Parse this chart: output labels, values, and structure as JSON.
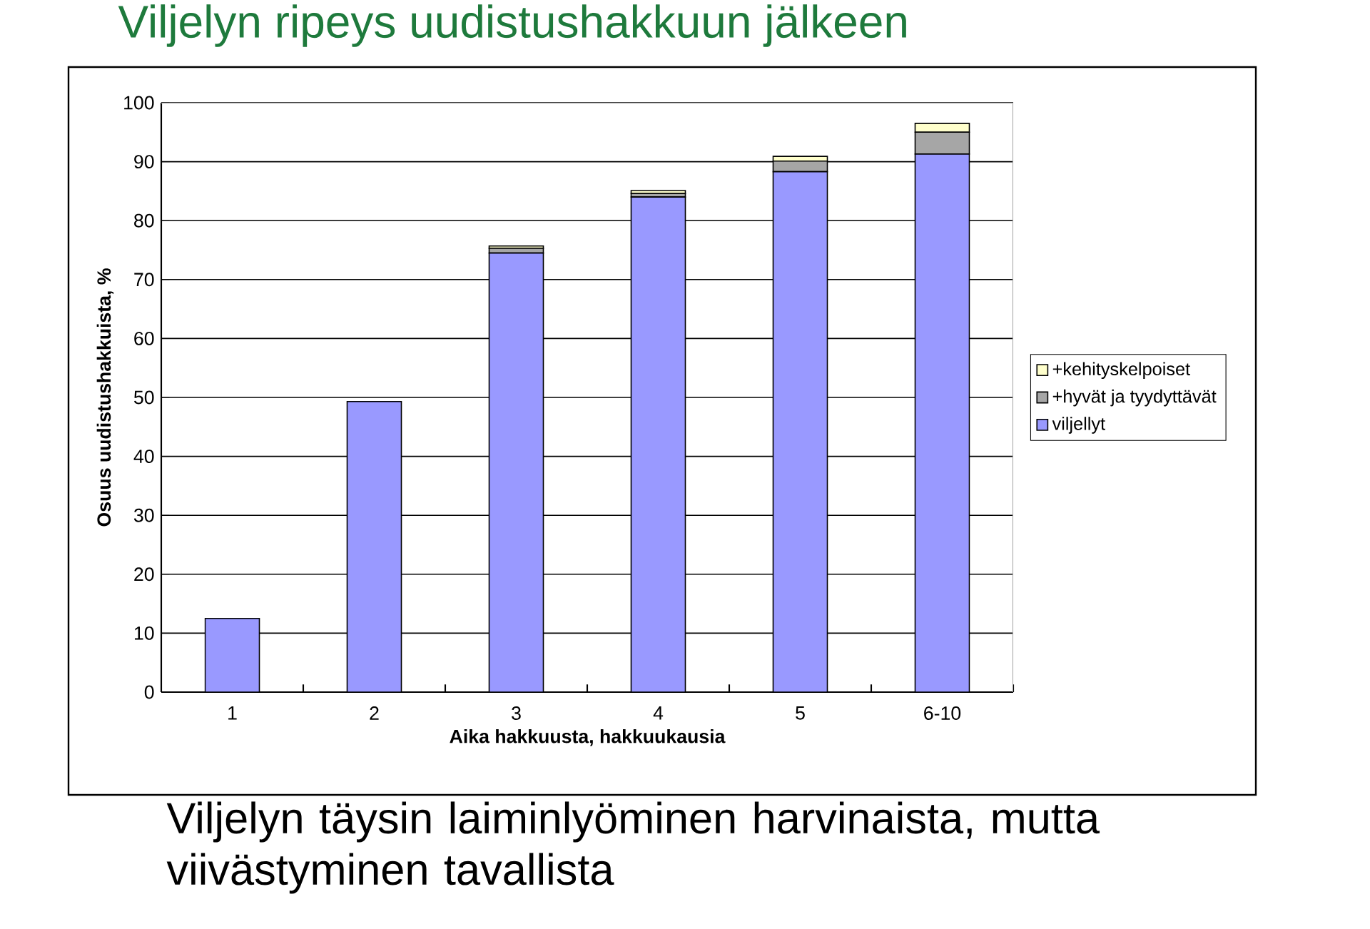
{
  "chart_data": {
    "type": "bar",
    "title": "Viljelyn ripeys uudistushakkuun jälkeen",
    "xlabel": "Aika hakkuusta, hakkuukausia",
    "ylabel": "Osuus uudistushakkuista, %",
    "categories": [
      "1",
      "2",
      "3",
      "4",
      "5",
      "6-10"
    ],
    "series": [
      {
        "name": "viljellyt",
        "color": "#9999ff",
        "values": [
          12.5,
          49.3,
          74.5,
          84.0,
          88.3,
          91.3
        ]
      },
      {
        "name": "+hyvät ja tyydyttävät",
        "color": "#a6a6a6",
        "values": [
          0,
          null,
          0.8,
          0.6,
          1.8,
          3.7
        ]
      },
      {
        "name": "+kehityskelpoiset",
        "color": "#ffffcc",
        "values": [
          0,
          null,
          0.4,
          0.5,
          0.8,
          1.5
        ]
      }
    ],
    "stacked": true,
    "ylim": [
      0,
      100
    ],
    "yticks": [
      0,
      10,
      20,
      30,
      40,
      50,
      60,
      70,
      80,
      90,
      100
    ],
    "grid": "y",
    "legend": "right",
    "annotations": [
      "Viljelyn täysin laiminlyöminen harvinaista, mutta viivästyminen tavallista"
    ]
  }
}
